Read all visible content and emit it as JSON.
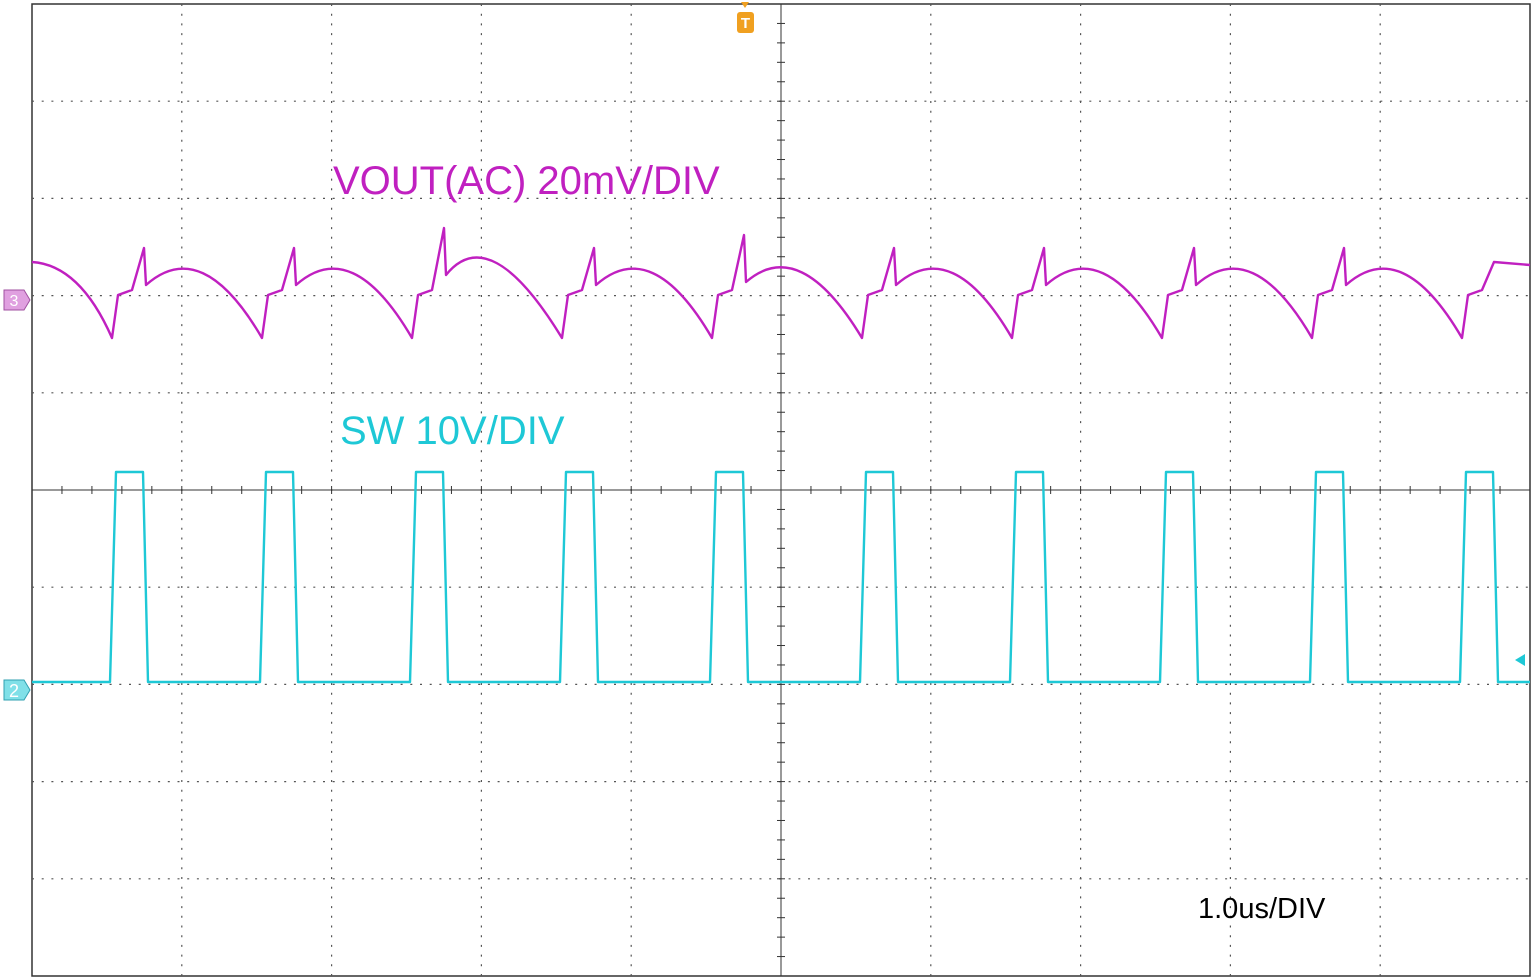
{
  "labels": {
    "vout": "VOUT(AC) 20mV/DIV",
    "sw": "SW 10V/DIV",
    "timebase": "1.0us/DIV"
  },
  "markers": {
    "ch3": "3",
    "ch2": "2",
    "trigger": "T"
  }
}
